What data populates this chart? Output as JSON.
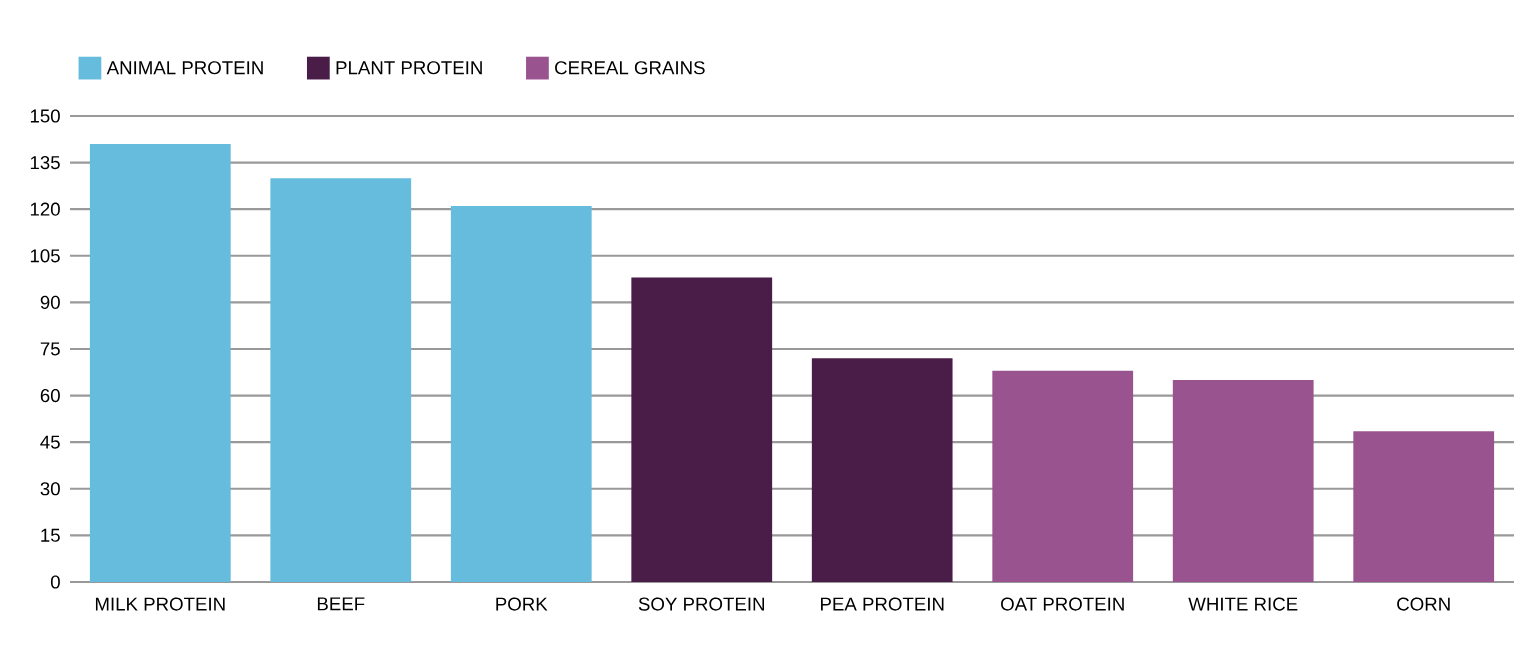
{
  "chart_data": {
    "type": "bar",
    "categories": [
      "MILK PROTEIN",
      "BEEF",
      "PORK",
      "SOY PROTEIN",
      "PEA PROTEIN",
      "OAT PROTEIN",
      "WHITE RICE",
      "CORN"
    ],
    "series": [
      {
        "name": "ANIMAL PROTEIN",
        "color": "#66bcdc",
        "values": [
          141,
          130,
          121,
          null,
          null,
          null,
          null,
          null
        ]
      },
      {
        "name": "PLANT PROTEIN",
        "color": "#4a1c48",
        "values": [
          null,
          null,
          null,
          98,
          72,
          null,
          null,
          null
        ]
      },
      {
        "name": "CEREAL GRAINS",
        "color": "#99538f",
        "values": [
          null,
          null,
          null,
          null,
          null,
          68,
          65,
          48.5
        ]
      }
    ],
    "ylim": [
      0,
      150
    ],
    "yticks": [
      0,
      15,
      30,
      45,
      60,
      75,
      90,
      105,
      120,
      135,
      150
    ],
    "grid": "y",
    "legend": "top left"
  }
}
